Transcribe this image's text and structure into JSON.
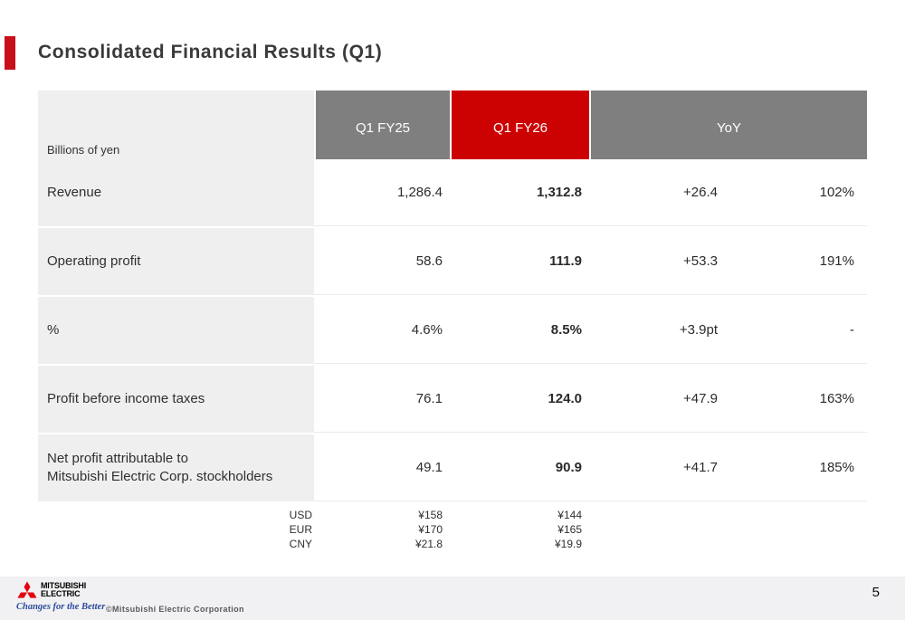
{
  "slide": {
    "title": "Consolidated Financial Results (Q1)",
    "page_number": "5"
  },
  "colors": {
    "accent_red": "#c8101a",
    "header_red": "#cc0202",
    "header_gray": "#7f7f7f",
    "label_cell_bg": "#efefef",
    "footer_bg": "#f1f1f3",
    "logo_red": "#e60012",
    "tagline_blue": "#2b4b9b"
  },
  "table": {
    "unit_label": "Billions of yen",
    "column_headers": [
      "Q1 FY25",
      "Q1 FY26",
      "YoY"
    ],
    "rows": [
      {
        "label": "Revenue",
        "fy25": "1,286.4",
        "fy26": "1,312.8",
        "yoy": "+26.4",
        "ratio": "102%"
      },
      {
        "label": "Operating profit",
        "fy25": "58.6",
        "fy26": "111.9",
        "yoy": "+53.3",
        "ratio": "191%"
      },
      {
        "label": "%",
        "fy25": "4.6%",
        "fy26": "8.5%",
        "yoy": "+3.9pt",
        "ratio": "-"
      },
      {
        "label": "Profit before income taxes",
        "fy25": "76.1",
        "fy26": "124.0",
        "yoy": "+47.9",
        "ratio": "163%"
      },
      {
        "label": "Net profit attributable to\nMitsubishi Electric Corp. stockholders",
        "fy25": "49.1",
        "fy26": "90.9",
        "yoy": "+41.7",
        "ratio": "185%"
      }
    ],
    "exchange_rates": [
      {
        "currency": "USD",
        "fy25": "¥158",
        "fy26": "¥144"
      },
      {
        "currency": "EUR",
        "fy25": "¥170",
        "fy26": "¥165"
      },
      {
        "currency": "CNY",
        "fy25": "¥21.8",
        "fy26": "¥19.9"
      }
    ]
  },
  "footer": {
    "brand_line1": "MITSUBISHI",
    "brand_line2": "ELECTRIC",
    "tagline": "Changes for the Better",
    "copyright": "©Mitsubishi Electric Corporation"
  }
}
